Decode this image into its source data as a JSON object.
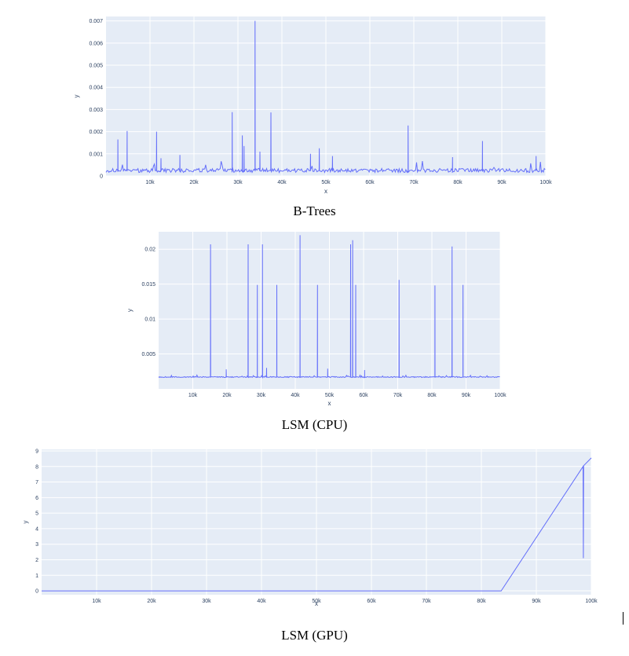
{
  "captions": [
    "B-Trees",
    "LSM (CPU)",
    "LSM (GPU)"
  ],
  "colors": {
    "line": "#636efa",
    "plot_bg": "#e5ecf6",
    "grid": "#ffffff",
    "tick_text": "#2a3f5f"
  },
  "chart_data": [
    {
      "type": "line",
      "xlabel": "x",
      "ylabel": "y",
      "xlim": [
        0,
        100000
      ],
      "ylim": [
        0,
        0.0072
      ],
      "x_ticks": [
        10000,
        20000,
        30000,
        40000,
        50000,
        60000,
        70000,
        80000,
        90000,
        100000
      ],
      "x_tick_labels": [
        "10k",
        "20k",
        "30k",
        "40k",
        "50k",
        "60k",
        "70k",
        "80k",
        "90k",
        "100k"
      ],
      "y_ticks": [
        0,
        0.001,
        0.002,
        0.003,
        0.004,
        0.005,
        0.006,
        0.007
      ],
      "y_tick_labels": [
        "0",
        "0.001",
        "0.002",
        "0.003",
        "0.004",
        "0.005",
        "0.006",
        "0.007"
      ],
      "grid": true,
      "baseline": 0.00025,
      "spikes": [
        {
          "x": 2700,
          "y": 0.00165
        },
        {
          "x": 4800,
          "y": 0.00203
        },
        {
          "x": 11500,
          "y": 0.002
        },
        {
          "x": 12500,
          "y": 0.0008
        },
        {
          "x": 16800,
          "y": 0.00095
        },
        {
          "x": 28700,
          "y": 0.00288
        },
        {
          "x": 31000,
          "y": 0.00183
        },
        {
          "x": 31400,
          "y": 0.00135
        },
        {
          "x": 33900,
          "y": 0.007
        },
        {
          "x": 35000,
          "y": 0.0011
        },
        {
          "x": 37500,
          "y": 0.00287
        },
        {
          "x": 46500,
          "y": 0.001
        },
        {
          "x": 48500,
          "y": 0.00125
        },
        {
          "x": 51500,
          "y": 0.0009
        },
        {
          "x": 68700,
          "y": 0.00228
        },
        {
          "x": 78800,
          "y": 0.00085
        },
        {
          "x": 85600,
          "y": 0.00158
        },
        {
          "x": 97800,
          "y": 0.0009
        }
      ]
    },
    {
      "type": "line",
      "xlabel": "x",
      "ylabel": "y",
      "xlim": [
        0,
        100000
      ],
      "ylim": [
        0,
        0.0225
      ],
      "x_ticks": [
        10000,
        20000,
        30000,
        40000,
        50000,
        60000,
        70000,
        80000,
        90000,
        100000
      ],
      "x_tick_labels": [
        "10k",
        "20k",
        "30k",
        "40k",
        "50k",
        "60k",
        "70k",
        "80k",
        "90k",
        "100k"
      ],
      "y_ticks": [
        0.005,
        0.01,
        0.015,
        0.02
      ],
      "y_tick_labels": [
        "0.005",
        "0.01",
        "0.015",
        "0.02"
      ],
      "grid": true,
      "baseline": 0.0017,
      "spikes": [
        {
          "x": 15200,
          "y": 0.0207
        },
        {
          "x": 19800,
          "y": 0.0028
        },
        {
          "x": 26200,
          "y": 0.0207
        },
        {
          "x": 28900,
          "y": 0.0149
        },
        {
          "x": 30400,
          "y": 0.0207
        },
        {
          "x": 31600,
          "y": 0.003
        },
        {
          "x": 34600,
          "y": 0.0149
        },
        {
          "x": 41400,
          "y": 0.022
        },
        {
          "x": 46500,
          "y": 0.0149
        },
        {
          "x": 49500,
          "y": 0.0029
        },
        {
          "x": 56200,
          "y": 0.0207
        },
        {
          "x": 56800,
          "y": 0.0213
        },
        {
          "x": 57700,
          "y": 0.0149
        },
        {
          "x": 60300,
          "y": 0.0027
        },
        {
          "x": 70400,
          "y": 0.0156
        },
        {
          "x": 80900,
          "y": 0.0148
        },
        {
          "x": 85900,
          "y": 0.0204
        },
        {
          "x": 89100,
          "y": 0.0149
        }
      ]
    },
    {
      "type": "line",
      "xlabel": "x",
      "ylabel": "y",
      "xlim": [
        0,
        100000
      ],
      "ylim": [
        -0.25,
        9.1
      ],
      "x_ticks": [
        10000,
        20000,
        30000,
        40000,
        50000,
        60000,
        70000,
        80000,
        90000,
        100000
      ],
      "x_tick_labels": [
        "10k",
        "20k",
        "30k",
        "40k",
        "50k",
        "60k",
        "70k",
        "80k",
        "90k",
        "100k"
      ],
      "y_ticks": [
        0,
        1,
        2,
        3,
        4,
        5,
        6,
        7,
        8,
        9
      ],
      "y_tick_labels": [
        "0",
        "1",
        "2",
        "3",
        "4",
        "5",
        "6",
        "7",
        "8",
        "9"
      ],
      "grid": true,
      "points": [
        {
          "x": 0,
          "y": 0
        },
        {
          "x": 83600,
          "y": 0
        },
        {
          "x": 98500,
          "y": 8.0
        },
        {
          "x": 98550,
          "y": 2.1
        },
        {
          "x": 98600,
          "y": 8.05
        },
        {
          "x": 100000,
          "y": 8.55
        }
      ]
    }
  ]
}
